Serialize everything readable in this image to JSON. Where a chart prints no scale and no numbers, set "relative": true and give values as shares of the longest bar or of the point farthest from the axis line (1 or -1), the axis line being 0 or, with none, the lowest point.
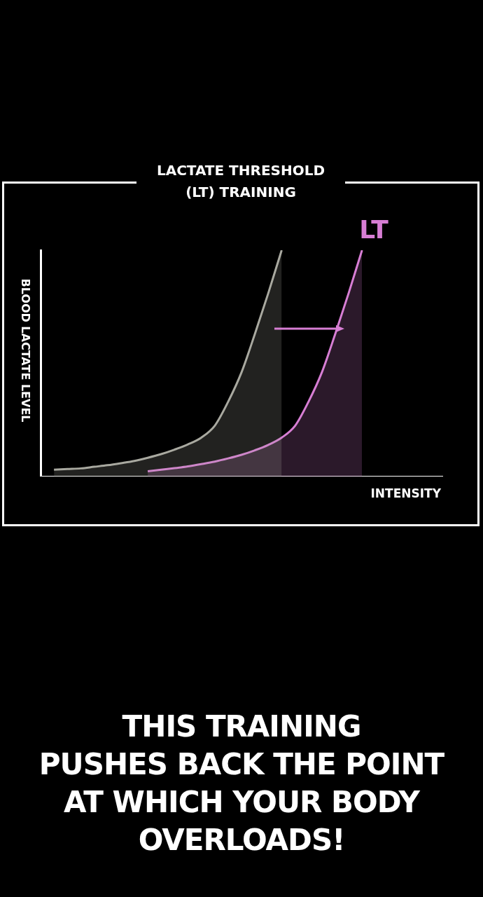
{
  "chart_data": {
    "type": "area",
    "title": "LACTATE THRESHOLD\n(LT) TRAINING",
    "xlabel": "INTENSITY",
    "ylabel": "BLOOD LACTATE LEVEL",
    "relative": true,
    "categories": [
      null,
      null,
      null,
      null,
      null,
      null,
      null,
      null,
      null,
      null,
      null,
      null,
      null,
      null,
      null,
      null,
      null,
      null,
      null,
      null,
      null,
      null,
      null,
      null,
      null,
      null,
      null,
      null,
      null,
      null,
      null
    ],
    "series": [
      {
        "color": "#a9a9a0",
        "values": [
          null,
          0.03,
          0.033,
          0.036,
          0.043,
          0.05,
          0.059,
          0.069,
          0.083,
          0.099,
          0.119,
          0.142,
          0.172,
          0.224,
          0.33,
          0.46,
          0.63,
          0.81,
          1,
          null,
          null,
          null,
          null,
          null,
          null,
          null,
          null,
          null,
          null,
          null,
          null
        ]
      },
      {
        "name": "LT",
        "color": "#d77ed4",
        "values": [
          null,
          null,
          null,
          null,
          null,
          null,
          null,
          null,
          0.023,
          0.03,
          0.037,
          0.045,
          0.055,
          0.066,
          0.08,
          0.096,
          0.116,
          0.14,
          0.172,
          0.224,
          0.33,
          0.46,
          0.63,
          0.81,
          1,
          null,
          null,
          null,
          null,
          null,
          null
        ]
      }
    ],
    "annotations": [
      "THIS TRAINING\nPUSHES BACK THE POINT\nAT WHICH YOUR BODY\nOVERLOADS!"
    ]
  }
}
